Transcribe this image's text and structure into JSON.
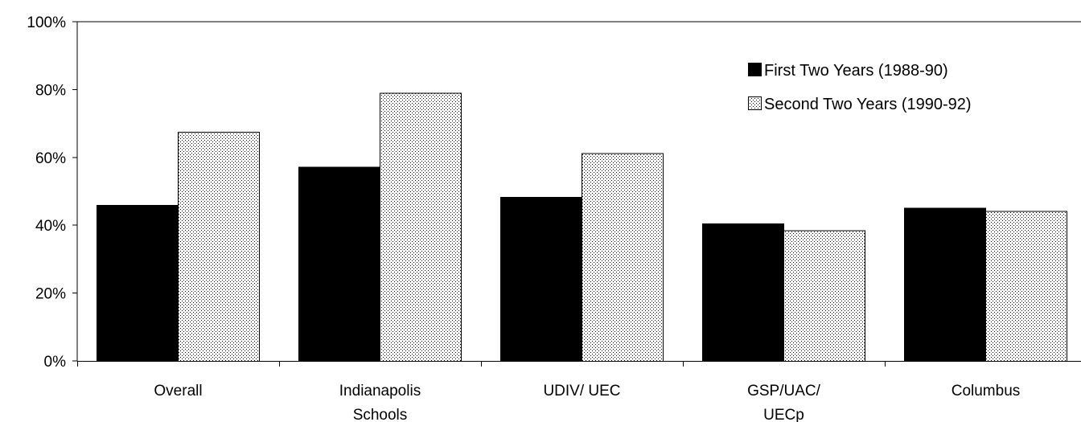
{
  "chart_data": {
    "type": "bar",
    "categories": [
      [
        "Overall"
      ],
      [
        "Indianapolis",
        "Schools"
      ],
      [
        "UDIV/ UEC"
      ],
      [
        "GSP/UAC/",
        "UECp"
      ],
      [
        "Columbus"
      ]
    ],
    "series": [
      {
        "name": "First Two Years (1988-90)",
        "values": [
          46,
          57.2,
          48.3,
          40.5,
          45.2
        ],
        "color": "#000000",
        "pattern": "solid"
      },
      {
        "name": "Second Two Years (1990-92)",
        "values": [
          67.5,
          79,
          61.3,
          38.5,
          44.2
        ],
        "color": "#ffffff",
        "pattern": "dotted"
      }
    ],
    "ylim": [
      0,
      100
    ],
    "yticks": [
      0,
      20,
      40,
      60,
      80,
      100
    ],
    "ytick_labels": [
      "0%",
      "20%",
      "40%",
      "60%",
      "80%",
      "100%"
    ],
    "grid": false,
    "legend_position": "top-right"
  }
}
